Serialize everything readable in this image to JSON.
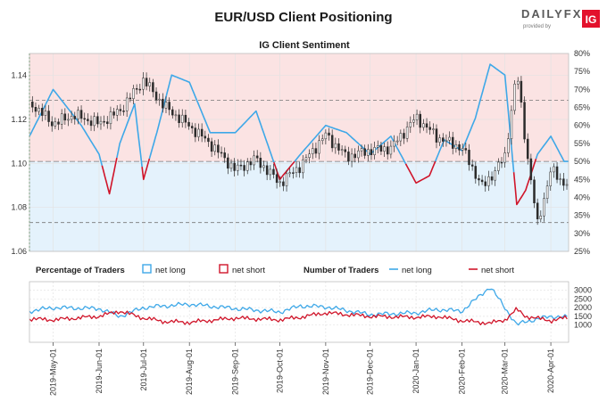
{
  "header": {
    "title": "EUR/USD Client Positioning",
    "brand": "DAILYFX",
    "brand_tagline": "provided by",
    "brand_badge": "IG"
  },
  "colors": {
    "long": "#3ea8e8",
    "short": "#d0152a",
    "long_fill": "#e4f2fc",
    "short_fill": "#fbe3e3",
    "candle": "#2b2b2b",
    "grid": "#e3e3e3",
    "brand_red": "#e3112c"
  },
  "chart_data": [
    {
      "type": "line",
      "title": "IG Client Sentiment",
      "x_ticks": [
        "2019-May-01",
        "2019-Jun-01",
        "2019-Jul-01",
        "2019-Aug-01",
        "2019-Sep-01",
        "2019-Oct-01",
        "2019-Nov-01",
        "2019-Dec-01",
        "2020-Jan-01",
        "2020-Feb-01",
        "2020-Mar-01",
        "2020-Apr-01"
      ],
      "y_left": {
        "label": "",
        "range": [
          1.06,
          1.15
        ],
        "ticks": [
          "1.06",
          "1.08",
          "1.10",
          "1.12",
          "1.14"
        ]
      },
      "y_right": {
        "label": "",
        "range": [
          25,
          80
        ],
        "ticks": [
          "25%",
          "30%",
          "35%",
          "40%",
          "45%",
          "50%",
          "55%",
          "60%",
          "65%",
          "70%",
          "75%",
          "80%"
        ]
      },
      "reference_lines_pct": [
        67,
        50,
        33
      ],
      "series": [
        {
          "name": "EUR/USD",
          "axis": "left",
          "style": "candlestick",
          "x": [
            "2019-04-15",
            "2019-05-01",
            "2019-05-15",
            "2019-06-01",
            "2019-06-15",
            "2019-07-01",
            "2019-07-15",
            "2019-08-01",
            "2019-08-15",
            "2019-09-01",
            "2019-09-15",
            "2019-10-01",
            "2019-10-15",
            "2019-11-01",
            "2019-11-15",
            "2019-12-01",
            "2019-12-15",
            "2020-01-01",
            "2020-01-15",
            "2020-02-01",
            "2020-02-15",
            "2020-03-01",
            "2020-03-09",
            "2020-03-15",
            "2020-03-23",
            "2020-04-01",
            "2020-04-10"
          ],
          "values": [
            1.128,
            1.118,
            1.122,
            1.118,
            1.124,
            1.138,
            1.126,
            1.117,
            1.109,
            1.097,
            1.102,
            1.091,
            1.099,
            1.113,
            1.103,
            1.106,
            1.107,
            1.121,
            1.112,
            1.107,
            1.089,
            1.103,
            1.142,
            1.109,
            1.072,
            1.097,
            1.091
          ]
        },
        {
          "name": "Net long %",
          "axis": "right",
          "x": [
            "2019-04-15",
            "2019-05-01",
            "2019-05-20",
            "2019-06-01",
            "2019-06-08",
            "2019-06-15",
            "2019-06-25",
            "2019-07-01",
            "2019-07-10",
            "2019-07-20",
            "2019-08-01",
            "2019-08-15",
            "2019-09-01",
            "2019-09-15",
            "2019-10-01",
            "2019-10-15",
            "2019-11-01",
            "2019-11-15",
            "2019-12-01",
            "2019-12-15",
            "2020-01-01",
            "2020-01-10",
            "2020-01-20",
            "2020-02-01",
            "2020-02-10",
            "2020-02-20",
            "2020-03-01",
            "2020-03-09",
            "2020-03-15",
            "2020-03-23",
            "2020-04-01",
            "2020-04-10"
          ],
          "values": [
            57,
            70,
            60,
            52,
            41,
            55,
            66,
            45,
            58,
            74,
            72,
            58,
            58,
            64,
            45,
            52,
            60,
            58,
            52,
            57,
            44,
            46,
            56,
            53,
            62,
            77,
            74,
            38,
            42,
            52,
            57,
            50
          ]
        }
      ]
    },
    {
      "type": "line",
      "x_ticks": [
        "2019-May-01",
        "2019-Jun-01",
        "2019-Jul-01",
        "2019-Aug-01",
        "2019-Sep-01",
        "2019-Oct-01",
        "2019-Nov-01",
        "2019-Dec-01",
        "2020-Jan-01",
        "2020-Feb-01",
        "2020-Mar-01",
        "2020-Apr-01"
      ],
      "y_right": {
        "range": [
          0,
          3500
        ],
        "ticks": [
          "1000",
          "1500",
          "2000",
          "2500",
          "3000"
        ]
      },
      "legend": {
        "pct_title": "Percentage of Traders",
        "pct_long": "net long",
        "pct_short": "net short",
        "num_title": "Number of Traders",
        "num_long": "net long",
        "num_short": "net short"
      },
      "series": [
        {
          "name": "net long",
          "x": [
            "2019-04-15",
            "2019-05-01",
            "2019-06-01",
            "2019-06-15",
            "2019-07-01",
            "2019-07-15",
            "2019-08-01",
            "2019-09-01",
            "2019-10-01",
            "2019-10-15",
            "2019-11-01",
            "2019-12-01",
            "2020-01-01",
            "2020-01-15",
            "2020-02-01",
            "2020-02-20",
            "2020-03-01",
            "2020-03-09",
            "2020-03-15",
            "2020-04-01",
            "2020-04-10"
          ],
          "values": [
            1800,
            2000,
            1950,
            1500,
            2000,
            2100,
            2200,
            1950,
            1750,
            2100,
            2050,
            1600,
            1700,
            1900,
            1800,
            3200,
            2000,
            1000,
            1200,
            1500,
            1450
          ]
        },
        {
          "name": "net short",
          "x": [
            "2019-04-15",
            "2019-05-01",
            "2019-06-01",
            "2019-06-15",
            "2019-07-01",
            "2019-07-15",
            "2019-08-01",
            "2019-09-01",
            "2019-10-01",
            "2019-10-15",
            "2019-11-01",
            "2019-12-01",
            "2020-01-01",
            "2020-01-15",
            "2020-02-01",
            "2020-02-20",
            "2020-03-01",
            "2020-03-09",
            "2020-03-15",
            "2020-04-01",
            "2020-04-10"
          ],
          "values": [
            1350,
            1300,
            1500,
            1800,
            1400,
            1200,
            1150,
            1400,
            1300,
            1450,
            1700,
            1500,
            1450,
            1500,
            1250,
            1100,
            1300,
            1900,
            1500,
            1250,
            1400
          ]
        }
      ]
    }
  ]
}
